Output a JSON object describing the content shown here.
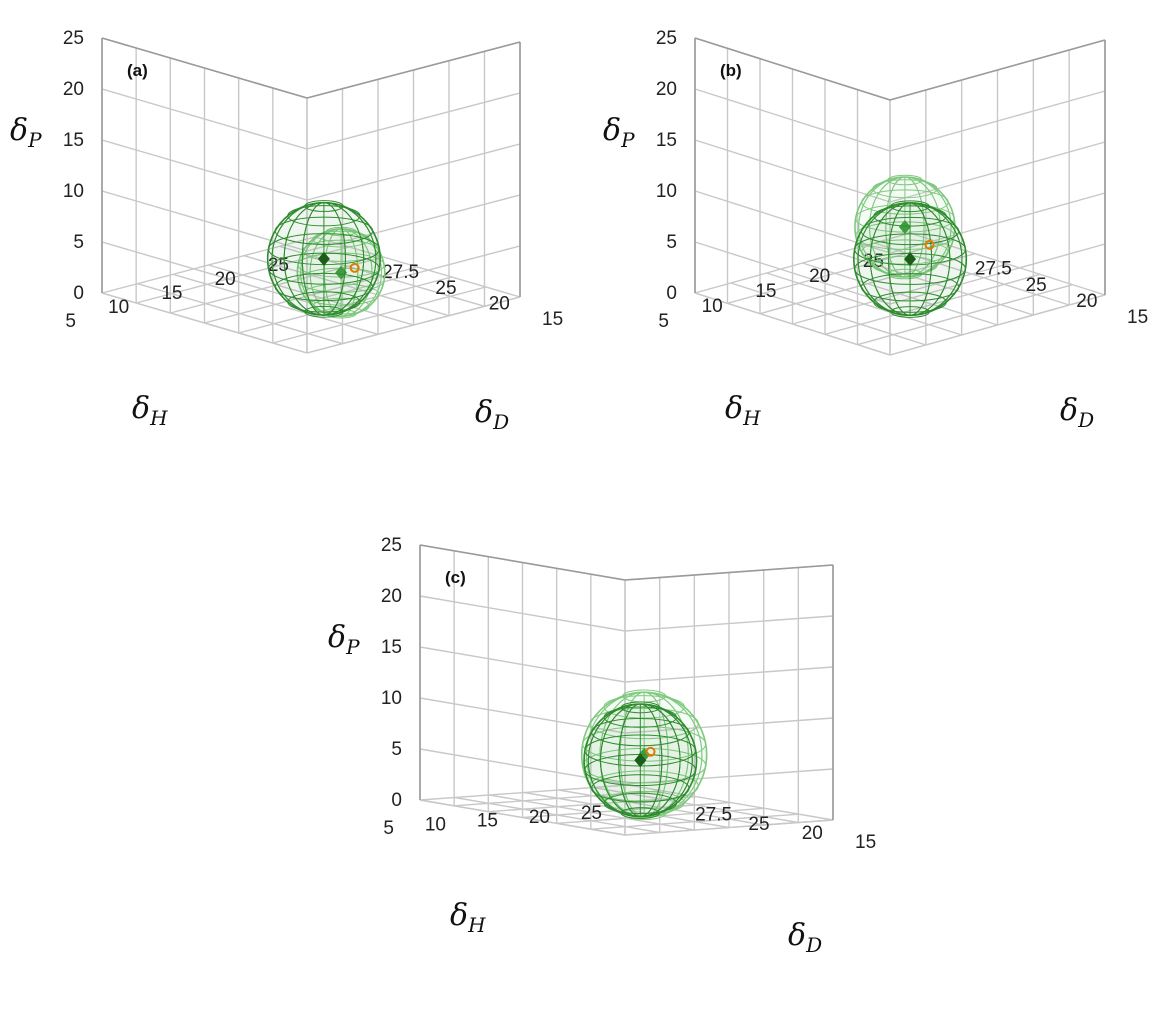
{
  "figure": {
    "colors": {
      "grid": "#c8c8c8",
      "frame": "#9a9a9a",
      "sphere_dark": "#2e8b2e",
      "sphere_light": "#7fc97f",
      "center_dark": "#1a5e1a",
      "center_light": "#3f9f3f",
      "solvent_point": "#e07b00"
    }
  },
  "chart_data": [
    {
      "type": "scatter",
      "panel_label": "(a)",
      "xlabel": "δD",
      "ylabel": "δH",
      "zlabel": "δP",
      "axes": {
        "dP_ticks": [
          "0",
          "5",
          "10",
          "15",
          "20",
          "25"
        ],
        "dH_ticks": [
          "5",
          "10",
          "15",
          "20",
          "25"
        ],
        "dD_ticks": [
          "15",
          "20",
          "25",
          "27.5"
        ]
      },
      "spheres": [
        {
          "shade": "dark",
          "center": {
            "dD": 19,
            "dH": 10,
            "dP": 6
          },
          "radius": 4.5
        },
        {
          "shade": "light",
          "center": {
            "dD": 17,
            "dH": 5,
            "dP": 7
          },
          "radius": 3.5
        }
      ],
      "points": [
        {
          "dD": 19,
          "dH": 7,
          "dP": 6
        }
      ]
    },
    {
      "type": "scatter",
      "panel_label": "(b)",
      "xlabel": "δD",
      "ylabel": "δH",
      "zlabel": "δP",
      "axes": {
        "dP_ticks": [
          "0",
          "5",
          "10",
          "15",
          "20",
          "25"
        ],
        "dH_ticks": [
          "5",
          "10",
          "15",
          "20",
          "25"
        ],
        "dD_ticks": [
          "15",
          "20",
          "25",
          "27.5"
        ]
      },
      "spheres": [
        {
          "shade": "dark",
          "center": {
            "dD": 19,
            "dH": 10,
            "dP": 6
          },
          "radius": 4.5
        },
        {
          "shade": "light",
          "center": {
            "dD": 17,
            "dH": 7,
            "dP": 11
          },
          "radius": 4
        }
      ],
      "points": [
        {
          "dD": 19,
          "dH": 8,
          "dP": 8
        }
      ]
    },
    {
      "type": "scatter",
      "panel_label": "(c)",
      "xlabel": "δD",
      "ylabel": "δH",
      "zlabel": "δP",
      "axes": {
        "dP_ticks": [
          "0",
          "5",
          "10",
          "15",
          "20",
          "25"
        ],
        "dH_ticks": [
          "5",
          "10",
          "15",
          "20",
          "25"
        ],
        "dD_ticks": [
          "15",
          "20",
          "25",
          "27.5"
        ]
      },
      "spheres": [
        {
          "shade": "dark",
          "center": {
            "dD": 19,
            "dH": 10,
            "dP": 6
          },
          "radius": 4.5
        },
        {
          "shade": "light",
          "center": {
            "dD": 18,
            "dH": 8,
            "dP": 7
          },
          "radius": 5
        }
      ],
      "points": [
        {
          "dD": 19,
          "dH": 9,
          "dP": 7
        }
      ]
    }
  ]
}
